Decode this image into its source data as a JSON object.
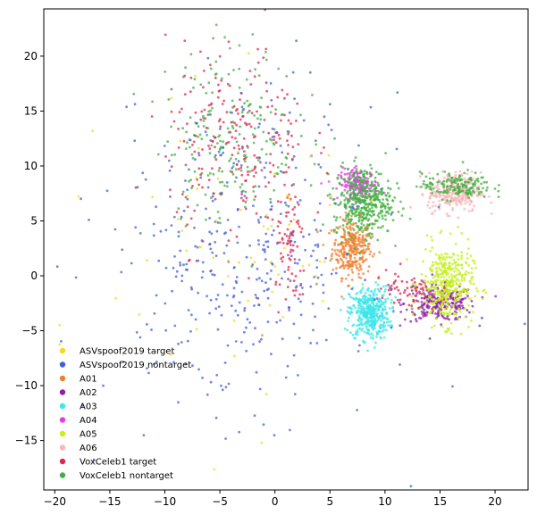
{
  "chart_data": {
    "type": "scatter",
    "title": "",
    "xlabel": "",
    "ylabel": "",
    "xlim": [
      -21,
      23
    ],
    "ylim": [
      -19.5,
      24.3
    ],
    "x_ticks": [
      -20,
      -15,
      -10,
      -5,
      0,
      5,
      10,
      15,
      20
    ],
    "x_tick_labels": [
      "−20",
      "−15",
      "−10",
      "−5",
      "0",
      "5",
      "10",
      "15",
      "20"
    ],
    "y_ticks": [
      -15,
      -10,
      -5,
      0,
      5,
      10,
      15,
      20
    ],
    "y_tick_labels": [
      "−15",
      "−10",
      "−5",
      "0",
      "5",
      "10",
      "15",
      "20"
    ],
    "grid": false,
    "legend_position": "lower-left",
    "series": [
      {
        "name": "ASVspoof2019 target",
        "color": "#f5d91a"
      },
      {
        "name": "ASVspoof2019 nontarget",
        "color": "#4161d8"
      },
      {
        "name": "A01",
        "color": "#f08030"
      },
      {
        "name": "A02",
        "color": "#8e1fa8"
      },
      {
        "name": "A03",
        "color": "#3fe6ea"
      },
      {
        "name": "A04",
        "color": "#e63ce6"
      },
      {
        "name": "A05",
        "color": "#c4f018"
      },
      {
        "name": "A06",
        "color": "#f8b4b8"
      },
      {
        "name": "VoxCeleb1 target",
        "color": "#dc2850"
      },
      {
        "name": "VoxCeleb1 nontarget",
        "color": "#40b040"
      }
    ],
    "clusters": [
      {
        "series": "A01",
        "center": [
          7.0,
          2.5
        ],
        "spread": [
          0.9,
          1.3
        ],
        "count": 300
      },
      {
        "series": "A02",
        "center": [
          15.0,
          -2.5
        ],
        "spread": [
          1.6,
          0.8
        ],
        "count": 260
      },
      {
        "series": "A03",
        "center": [
          8.6,
          -3.4
        ],
        "spread": [
          0.9,
          1.2
        ],
        "count": 420
      },
      {
        "series": "A04",
        "center": [
          7.6,
          8.3
        ],
        "spread": [
          0.9,
          0.7
        ],
        "count": 160
      },
      {
        "series": "A05",
        "center": [
          15.6,
          -0.8
        ],
        "spread": [
          1.2,
          1.8
        ],
        "count": 380
      },
      {
        "series": "A06",
        "center": [
          16.3,
          7.6
        ],
        "spread": [
          1.2,
          0.9
        ],
        "count": 280
      },
      {
        "series": "VoxCeleb1 nontarget",
        "center": [
          8.0,
          6.8
        ],
        "spread": [
          1.3,
          1.6
        ],
        "count": 420
      },
      {
        "series": "VoxCeleb1 nontarget",
        "center": [
          16.5,
          8.2
        ],
        "spread": [
          1.6,
          0.6
        ],
        "count": 160
      },
      {
        "series": "VoxCeleb1 nontarget",
        "center": [
          -4.0,
          13.0
        ],
        "spread": [
          3.0,
          4.0
        ],
        "count": 200
      },
      {
        "series": "VoxCeleb1 target",
        "center": [
          -3.5,
          12.0
        ],
        "spread": [
          3.2,
          4.5
        ],
        "count": 220
      },
      {
        "series": "VoxCeleb1 target",
        "center": [
          1.5,
          2.0
        ],
        "spread": [
          0.7,
          3.0
        ],
        "count": 80
      },
      {
        "series": "VoxCeleb1 target",
        "center": [
          12.0,
          -1.5
        ],
        "spread": [
          1.5,
          1.0
        ],
        "count": 60
      },
      {
        "series": "ASVspoof2019 nontarget",
        "center": [
          -3.0,
          2.0
        ],
        "spread": [
          6.0,
          7.0
        ],
        "count": 380
      },
      {
        "series": "ASVspoof2019 target",
        "center": [
          -3.0,
          2.0
        ],
        "spread": [
          6.0,
          7.0
        ],
        "count": 70
      }
    ]
  }
}
